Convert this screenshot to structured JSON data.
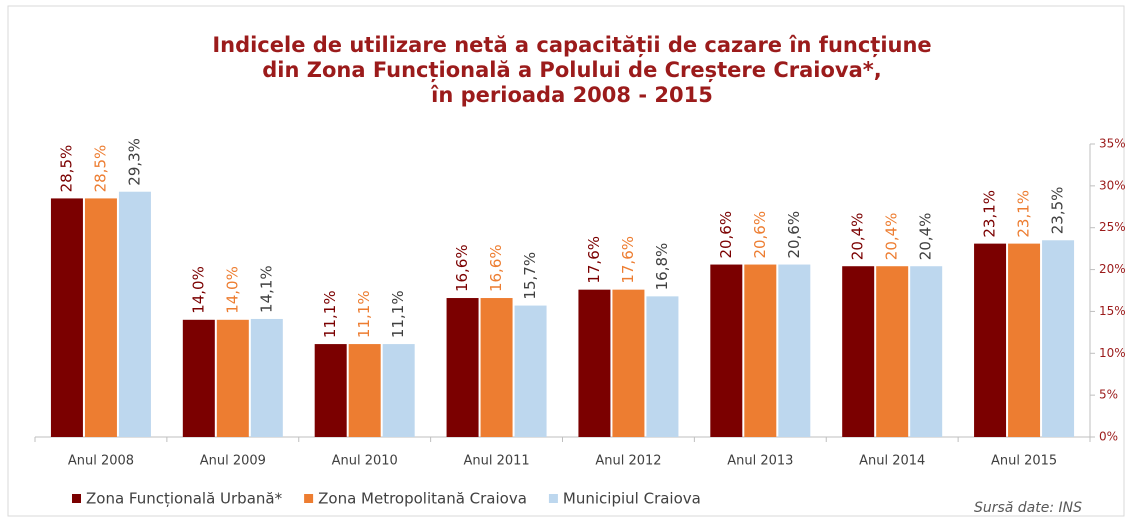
{
  "chart_data": {
    "type": "bar",
    "title": [
      "Indicele de utilizare netă a capacității de cazare în funcțiune",
      "din Zona Funcțională a Polului de Creștere Craiova*,",
      "în perioada 2008 - 2015"
    ],
    "categories": [
      "Anul 2008",
      "Anul 2009",
      "Anul 2010",
      "Anul 2011",
      "Anul 2012",
      "Anul 2013",
      "Anul 2014",
      "Anul 2015"
    ],
    "series": [
      {
        "name": "Zona Funcțională Urbană*",
        "color": "#7b0000",
        "label_color": "#7b0000",
        "values": [
          28.5,
          14.0,
          11.1,
          16.6,
          17.6,
          20.6,
          20.4,
          23.1
        ],
        "value_labels": [
          "28,5%",
          "14,0%",
          "11,1%",
          "16,6%",
          "17,6%",
          "20,6%",
          "20,4%",
          "23,1%"
        ]
      },
      {
        "name": "Zona Metropolitană Craiova",
        "color": "#ed7d31",
        "label_color": "#ed7d31",
        "values": [
          28.5,
          14.0,
          11.1,
          16.6,
          17.6,
          20.6,
          20.4,
          23.1
        ],
        "value_labels": [
          "28,5%",
          "14,0%",
          "11,1%",
          "16,6%",
          "17,6%",
          "20,6%",
          "20,4%",
          "23,1%"
        ]
      },
      {
        "name": "Municipiul Craiova",
        "color": "#bdd7ee",
        "label_color": "#404040",
        "values": [
          29.3,
          14.1,
          11.1,
          15.7,
          16.8,
          20.6,
          20.4,
          23.5
        ],
        "value_labels": [
          "29,3%",
          "14,1%",
          "11,1%",
          "15,7%",
          "16,8%",
          "20,6%",
          "20,4%",
          "23,5%"
        ]
      }
    ],
    "ylim": [
      0,
      35
    ],
    "yticks": [
      {
        "value": 0,
        "label": "0%"
      },
      {
        "value": 5,
        "label": "5%"
      },
      {
        "value": 10,
        "label": "10%"
      },
      {
        "value": 15,
        "label": "15%"
      },
      {
        "value": 20,
        "label": "20%"
      },
      {
        "value": 25,
        "label": "25%"
      },
      {
        "value": 30,
        "label": "30%"
      },
      {
        "value": 35,
        "label": "35%"
      }
    ],
    "y_axis_side": "right",
    "grid": false,
    "legend": "bottom-left",
    "source": "Sursă date: INS"
  }
}
